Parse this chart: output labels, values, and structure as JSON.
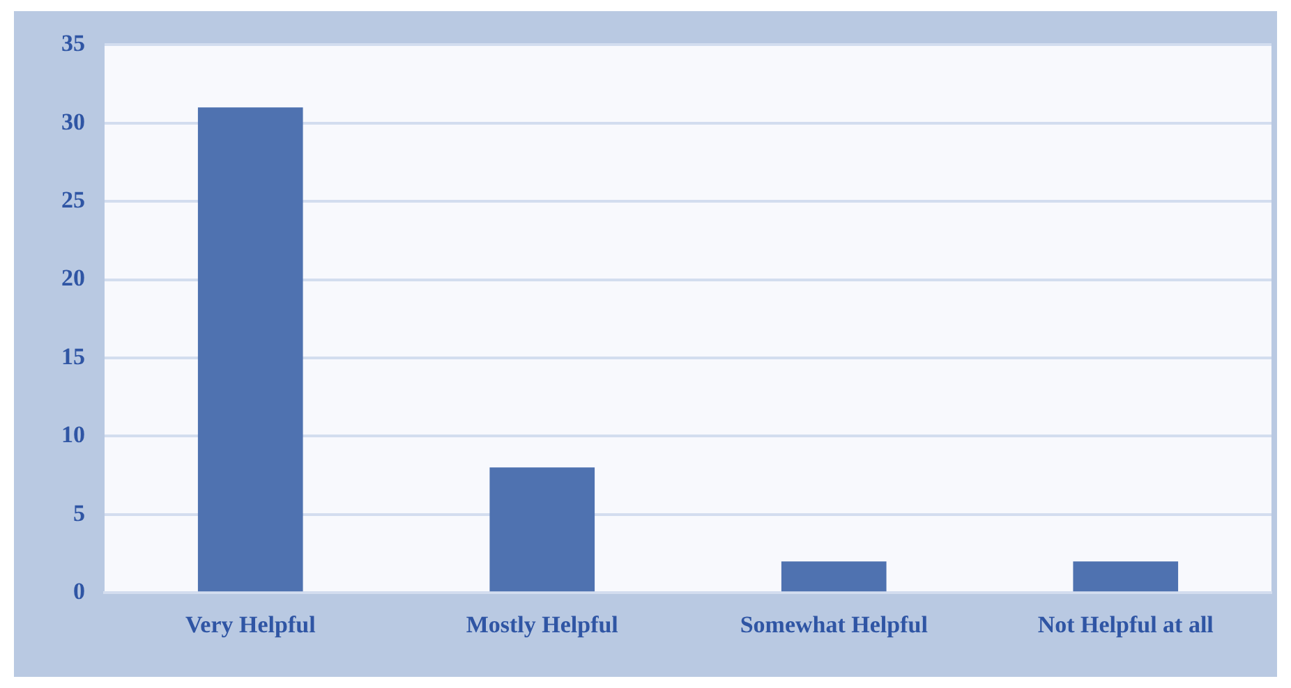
{
  "chart_data": {
    "type": "bar",
    "categories": [
      "Very Helpful",
      "Mostly Helpful",
      "Somewhat Helpful",
      "Not Helpful at all"
    ],
    "values": [
      31,
      8,
      2,
      2
    ],
    "color": "#4f72b0",
    "ylim": [
      0,
      35
    ],
    "yticks": [
      0,
      5,
      10,
      15,
      20,
      25,
      30,
      35
    ],
    "grid": "y",
    "legend": false
  }
}
